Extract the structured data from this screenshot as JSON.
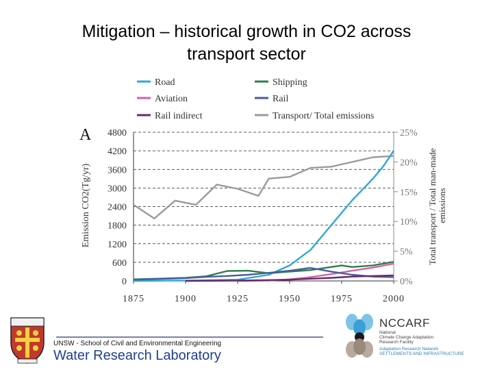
{
  "slide": {
    "title_line1": "Mitigation – historical growth in CO2 across",
    "title_line2": "transport sector"
  },
  "footer": {
    "school": "UNSW - School of Civil and Environmental Engineering",
    "lab": "Water Research Laboratory",
    "nccarf_name": "NCCARF",
    "nccarf_line1": "National",
    "nccarf_line2": "Climate Change Adaptation",
    "nccarf_line3": "Research Facility",
    "nccarf_line4": "Adaptation Research Network",
    "nccarf_line5": "SETTLEMENTS AND INFRASTRUCTURE"
  },
  "chart_data": {
    "type": "line",
    "panel_label": "A",
    "ylabel_left": "Emission CO2(Tg/yr)",
    "ylabel_right": "Total transport / Total man-made emissions",
    "xlim": [
      1875,
      2000
    ],
    "x_ticks": [
      "1875",
      "1900",
      "1925",
      "1950",
      "1975",
      "2000"
    ],
    "y_left_lim": [
      0,
      4800
    ],
    "y_left_ticks": [
      "0",
      "600",
      "1200",
      "1800",
      "2400",
      "3000",
      "3600",
      "4200",
      "4800"
    ],
    "y_right_lim": [
      0,
      25
    ],
    "y_right_ticks": [
      "0%",
      "5%",
      "10%",
      "15%",
      "20%",
      "25%"
    ],
    "grid": "dashed horizontal",
    "legend_position": "top",
    "legend": [
      "Road",
      "Shipping",
      "Aviation",
      "Rail",
      "Rail indirect",
      "Transport/ Total emissions"
    ],
    "colors": {
      "Road": "#2ea8d8",
      "Shipping": "#2e7d4a",
      "Aviation": "#d65fa8",
      "Rail": "#4a5d9c",
      "Rail indirect": "#6a2a6e",
      "Transport/ Total emissions": "#9a9a9a"
    },
    "series": [
      {
        "name": "Road",
        "axis": "left",
        "x": [
          1875,
          1900,
          1925,
          1940,
          1950,
          1960,
          1970,
          1980,
          1990,
          1995,
          2000
        ],
        "values": [
          0,
          10,
          40,
          200,
          500,
          1000,
          1800,
          2600,
          3300,
          3700,
          4200
        ]
      },
      {
        "name": "Shipping",
        "axis": "left",
        "x": [
          1875,
          1890,
          1900,
          1910,
          1920,
          1930,
          1940,
          1950,
          1960,
          1965,
          1970,
          1975,
          1980,
          1990,
          2000
        ],
        "values": [
          50,
          80,
          100,
          150,
          320,
          330,
          250,
          300,
          350,
          400,
          450,
          500,
          450,
          500,
          620
        ]
      },
      {
        "name": "Aviation",
        "axis": "left",
        "x": [
          1925,
          1940,
          1950,
          1960,
          1970,
          1980,
          1990,
          2000
        ],
        "values": [
          0,
          10,
          50,
          120,
          220,
          330,
          430,
          560
        ]
      },
      {
        "name": "Rail",
        "axis": "left",
        "x": [
          1875,
          1900,
          1910,
          1920,
          1930,
          1940,
          1950,
          1960,
          1970,
          1980,
          1990,
          2000
        ],
        "values": [
          40,
          90,
          130,
          160,
          200,
          260,
          330,
          420,
          300,
          200,
          140,
          120
        ]
      },
      {
        "name": "Rail indirect",
        "axis": "left",
        "x": [
          1900,
          1925,
          1950,
          1960,
          1970,
          1980,
          1990,
          2000
        ],
        "values": [
          0,
          10,
          40,
          70,
          100,
          140,
          160,
          180
        ]
      },
      {
        "name": "Transport/ Total emissions",
        "axis": "right",
        "x": [
          1875,
          1885,
          1890,
          1895,
          1905,
          1915,
          1925,
          1935,
          1940,
          1950,
          1960,
          1970,
          1980,
          1990,
          2000
        ],
        "values": [
          12.8,
          10.5,
          12.0,
          13.5,
          12.8,
          16.2,
          15.5,
          14.3,
          17.2,
          17.5,
          19.0,
          19.2,
          20.0,
          20.8,
          21.0
        ]
      }
    ]
  }
}
